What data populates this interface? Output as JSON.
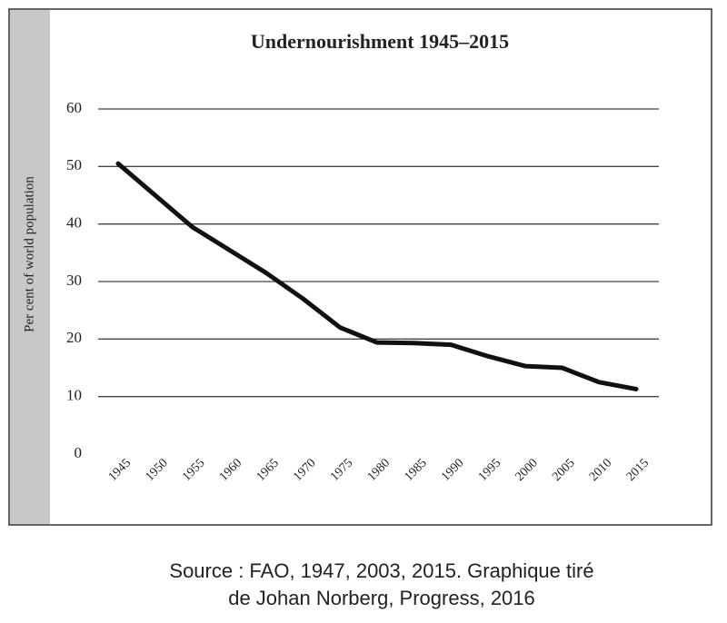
{
  "chart_data": {
    "type": "line",
    "title": "Undernourishment 1945–2015",
    "y_label": "Per cent of world population",
    "x": [
      1945,
      1950,
      1955,
      1960,
      1965,
      1970,
      1975,
      1980,
      1985,
      1990,
      1995,
      2000,
      2005,
      2010,
      2015
    ],
    "series": [
      {
        "color": "#111111",
        "values": [
          50.5,
          45,
          39.5,
          35.5,
          31.5,
          27,
          22,
          19.4,
          19.3,
          19,
          17,
          15.3,
          15,
          12.5,
          11.3
        ]
      }
    ],
    "ylim": [
      0,
      60
    ],
    "yticks": [
      0,
      10,
      20,
      30,
      40,
      50,
      60
    ],
    "grid": true,
    "source": [
      "Source : FAO, 1947, 2003, 2015. Graphique tiré",
      "de Johan Norberg, Progress, 2016"
    ]
  }
}
